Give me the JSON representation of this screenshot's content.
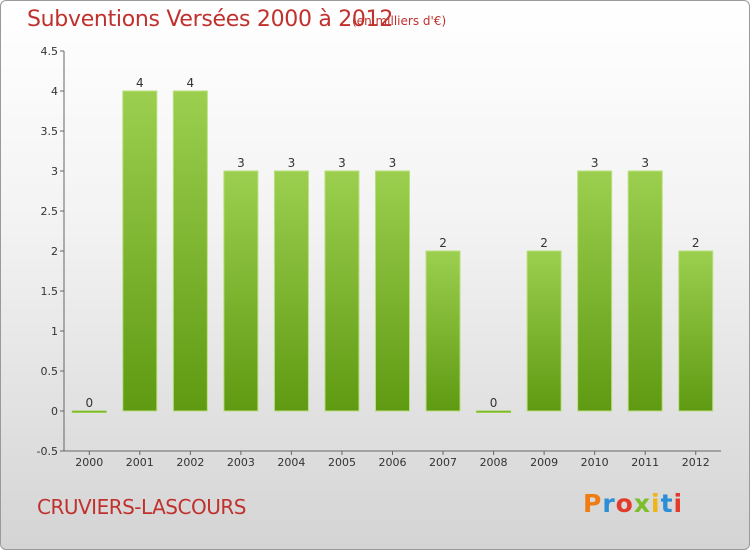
{
  "header": {
    "title": "Subventions Versées 2000 à 2012",
    "subtitle": "(en milliers d'€)"
  },
  "footer": {
    "commune": "CRUVIERS-LASCOURS",
    "logo_text": "Proxiti",
    "logo_colors": [
      "#f07c14",
      "#2b8fd6",
      "#e23b2a",
      "#7cbf2b",
      "#f0b414",
      "#2b8fd6",
      "#e23b2a"
    ]
  },
  "colors": {
    "bar_light": "#9ccf4f",
    "bar_dark": "#5f9a12",
    "axis": "#666666",
    "title": "#c0312e"
  },
  "chart_data": {
    "type": "bar",
    "categories": [
      "2000",
      "2001",
      "2002",
      "2003",
      "2004",
      "2005",
      "2006",
      "2007",
      "2008",
      "2009",
      "2010",
      "2011",
      "2012"
    ],
    "values": [
      0,
      4,
      4,
      3,
      3,
      3,
      3,
      2,
      0,
      2,
      3,
      3,
      2
    ],
    "value_labels": [
      "0",
      "4",
      "4",
      "3",
      "3",
      "3",
      "3",
      "2",
      "0",
      "2",
      "3",
      "3",
      "2"
    ],
    "title": "Subventions Versées 2000 à 2012",
    "subtitle": "(en milliers d'€)",
    "ylim": [
      -0.5,
      4.5
    ],
    "yticks": [
      4.5,
      4,
      3.5,
      3,
      2.5,
      2,
      1.5,
      1,
      0.5,
      0,
      -0.5
    ],
    "ytick_labels": [
      "4.5",
      "4",
      "3.5",
      "3",
      "2.5",
      "2",
      "1.5",
      "1",
      "0.5",
      "0",
      "-0.5"
    ],
    "grid": false
  }
}
